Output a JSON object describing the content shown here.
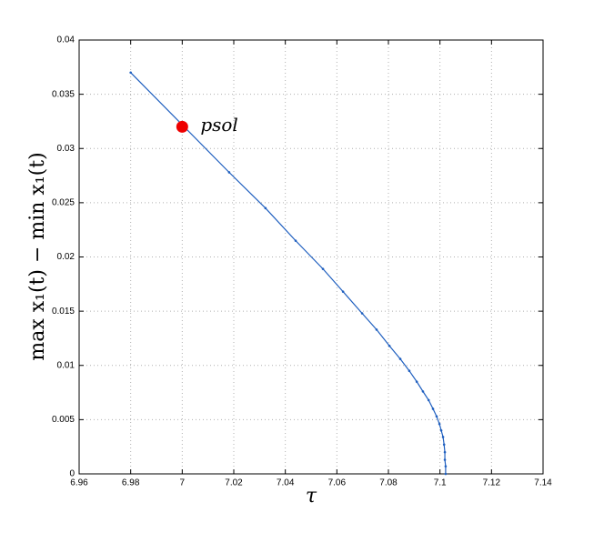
{
  "chart_data": {
    "type": "line",
    "xlabel": "τ",
    "ylabel": "max x₁(t) − min x₁(t)",
    "x": [
      6.98,
      7.0182,
      7.0323,
      7.044,
      7.0546,
      7.0624,
      7.0698,
      7.0754,
      7.0804,
      7.0846,
      7.0881,
      7.091,
      7.0934,
      7.0956,
      7.0973,
      7.0987,
      7.0998,
      7.1005,
      7.1012,
      7.1016,
      7.1019,
      7.1019,
      7.1022,
      7.1022
    ],
    "series": [
      {
        "color": "#1f5fbf",
        "values": [
          0.037,
          0.0278,
          0.0245,
          0.0215,
          0.0189,
          0.0168,
          0.0148,
          0.0133,
          0.0118,
          0.0106,
          0.0095,
          0.0085,
          0.0076,
          0.0068,
          0.006,
          0.0053,
          0.0046,
          0.004,
          0.0034,
          0.0027,
          0.002,
          0.0013,
          0.0007,
          0
        ]
      }
    ],
    "highlight": {
      "x": 7.0,
      "y": 0.032,
      "label": "psol",
      "color": "#ee0000"
    },
    "xlim": [
      6.96,
      7.14
    ],
    "xticks": [
      6.96,
      6.98,
      7,
      7.02,
      7.04,
      7.06,
      7.08,
      7.1,
      7.12,
      7.14
    ],
    "ylim": [
      0,
      0.04
    ],
    "yticks": [
      0,
      0.005,
      0.01,
      0.015,
      0.02,
      0.025,
      0.03,
      0.035,
      0.04
    ],
    "grid": true
  }
}
